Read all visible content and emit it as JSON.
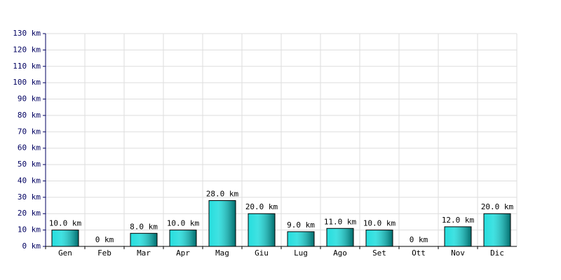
{
  "chart_data": {
    "type": "bar",
    "categories": [
      "Gen",
      "Feb",
      "Mar",
      "Apr",
      "Mag",
      "Giu",
      "Lug",
      "Ago",
      "Set",
      "Ott",
      "Nov",
      "Dic"
    ],
    "values": [
      10,
      0,
      8,
      10,
      28,
      20,
      9,
      11,
      10,
      0,
      12,
      20
    ],
    "value_labels": [
      "10.0 km",
      "0 km",
      "8.0 km",
      "10.0 km",
      "28.0 km",
      "20.0 km",
      "9.0 km",
      "11.0 km",
      "10.0 km",
      "0 km",
      "12.0 km",
      "20.0 km"
    ],
    "color": "#00d8d8",
    "ylim": [
      0,
      130
    ],
    "yticks": [
      {
        "value": 0,
        "label": "0 km"
      },
      {
        "value": 10,
        "label": "10 km"
      },
      {
        "value": 20,
        "label": "20 km"
      },
      {
        "value": 30,
        "label": "30 km"
      },
      {
        "value": 40,
        "label": "40 km"
      },
      {
        "value": 50,
        "label": "50 km"
      },
      {
        "value": 60,
        "label": "60 km"
      },
      {
        "value": 70,
        "label": "70 km"
      },
      {
        "value": 80,
        "label": "80 km"
      },
      {
        "value": 90,
        "label": "90 km"
      },
      {
        "value": 100,
        "label": "100 km"
      },
      {
        "value": 110,
        "label": "110 km"
      },
      {
        "value": 120,
        "label": "120 km"
      },
      {
        "value": 130,
        "label": "130 km"
      }
    ],
    "grid": true
  }
}
